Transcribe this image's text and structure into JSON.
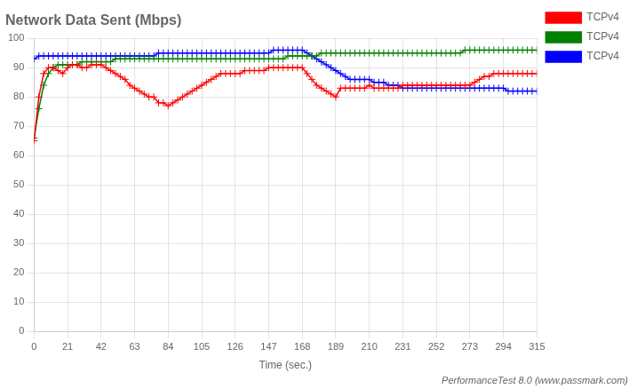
{
  "chart_data": {
    "type": "line",
    "title": "Network Data Sent (Mbps)",
    "xlabel": "Time (sec.)",
    "annotation": "PerformanceTest 8.0 (www.passmark.com)",
    "x": [
      0,
      3,
      6,
      9,
      12,
      15,
      18,
      21,
      24,
      27,
      30,
      33,
      36,
      39,
      42,
      45,
      48,
      51,
      54,
      57,
      60,
      63,
      66,
      69,
      72,
      75,
      78,
      81,
      84,
      87,
      90,
      93,
      96,
      99,
      102,
      105,
      108,
      111,
      114,
      117,
      120,
      123,
      126,
      129,
      132,
      135,
      138,
      141,
      144,
      147,
      150,
      153,
      156,
      159,
      162,
      165,
      168,
      171,
      174,
      177,
      180,
      183,
      186,
      189,
      192,
      195,
      198,
      201,
      204,
      207,
      210,
      213,
      216,
      219,
      222,
      225,
      228,
      231,
      234,
      237,
      240,
      243,
      246,
      249,
      252,
      255,
      258,
      261,
      264,
      267,
      270,
      273,
      276,
      279,
      282,
      285,
      288,
      291,
      294,
      297,
      300,
      303,
      306,
      309,
      312,
      315
    ],
    "series": [
      {
        "name": "TCPv4",
        "color": "#ff0000",
        "marker": "plus",
        "line_style": "solid",
        "values": [
          65,
          80,
          88,
          90,
          90,
          89,
          88,
          90,
          91,
          91,
          90,
          90,
          91,
          91,
          91,
          90,
          89,
          88,
          87,
          86,
          84,
          83,
          82,
          81,
          80,
          80,
          78,
          78,
          77,
          78,
          79,
          80,
          81,
          82,
          83,
          84,
          85,
          86,
          87,
          88,
          88,
          88,
          88,
          88,
          89,
          89,
          89,
          89,
          89,
          90,
          90,
          90,
          90,
          90,
          90,
          90,
          90,
          88,
          86,
          84,
          83,
          82,
          81,
          80,
          83,
          83,
          83,
          83,
          83,
          83,
          84,
          83,
          83,
          83,
          83,
          83,
          83,
          84,
          84,
          84,
          84,
          84,
          84,
          84,
          84,
          84,
          84,
          84,
          84,
          84,
          84,
          84,
          85,
          86,
          87,
          87,
          88,
          88,
          88,
          88,
          88,
          88,
          88,
          88,
          88,
          88
        ]
      },
      {
        "name": "TCPv4",
        "color": "#008000",
        "marker": "plus",
        "line_style": "solid",
        "values": [
          66,
          76,
          84,
          88,
          90,
          91,
          91,
          91,
          91,
          91,
          92,
          92,
          92,
          92,
          92,
          92,
          92,
          93,
          93,
          93,
          93,
          93,
          93,
          93,
          93,
          93,
          93,
          93,
          93,
          93,
          93,
          93,
          93,
          93,
          93,
          93,
          93,
          93,
          93,
          93,
          93,
          93,
          93,
          93,
          93,
          93,
          93,
          93,
          93,
          93,
          93,
          93,
          93,
          94,
          94,
          94,
          94,
          94,
          94,
          94,
          95,
          95,
          95,
          95,
          95,
          95,
          95,
          95,
          95,
          95,
          95,
          95,
          95,
          95,
          95,
          95,
          95,
          95,
          95,
          95,
          95,
          95,
          95,
          95,
          95,
          95,
          95,
          95,
          95,
          95,
          96,
          96,
          96,
          96,
          96,
          96,
          96,
          96,
          96,
          96,
          96,
          96,
          96,
          96,
          96,
          96
        ]
      },
      {
        "name": "TCPv4",
        "color": "#0000ff",
        "marker": "plus",
        "line_style": "solid",
        "values": [
          93,
          94,
          94,
          94,
          94,
          94,
          94,
          94,
          94,
          94,
          94,
          94,
          94,
          94,
          94,
          94,
          94,
          94,
          94,
          94,
          94,
          94,
          94,
          94,
          94,
          94,
          95,
          95,
          95,
          95,
          95,
          95,
          95,
          95,
          95,
          95,
          95,
          95,
          95,
          95,
          95,
          95,
          95,
          95,
          95,
          95,
          95,
          95,
          95,
          95,
          96,
          96,
          96,
          96,
          96,
          96,
          96,
          95,
          94,
          93,
          92,
          91,
          90,
          89,
          88,
          87,
          86,
          86,
          86,
          86,
          86,
          85,
          85,
          85,
          84,
          84,
          84,
          83,
          83,
          83,
          83,
          83,
          83,
          83,
          83,
          83,
          83,
          83,
          83,
          83,
          83,
          83,
          83,
          83,
          83,
          83,
          83,
          83,
          83,
          82,
          82,
          82,
          82,
          82,
          82,
          82
        ]
      }
    ],
    "xlim": [
      0,
      315
    ],
    "xticks": [
      0,
      21,
      42,
      63,
      84,
      105,
      126,
      147,
      168,
      189,
      210,
      231,
      252,
      273,
      294,
      315
    ],
    "ylim": [
      0,
      100
    ],
    "yticks": [
      0,
      10,
      20,
      30,
      40,
      50,
      60,
      70,
      80,
      90,
      100
    ],
    "grid": true,
    "legend": "right"
  }
}
